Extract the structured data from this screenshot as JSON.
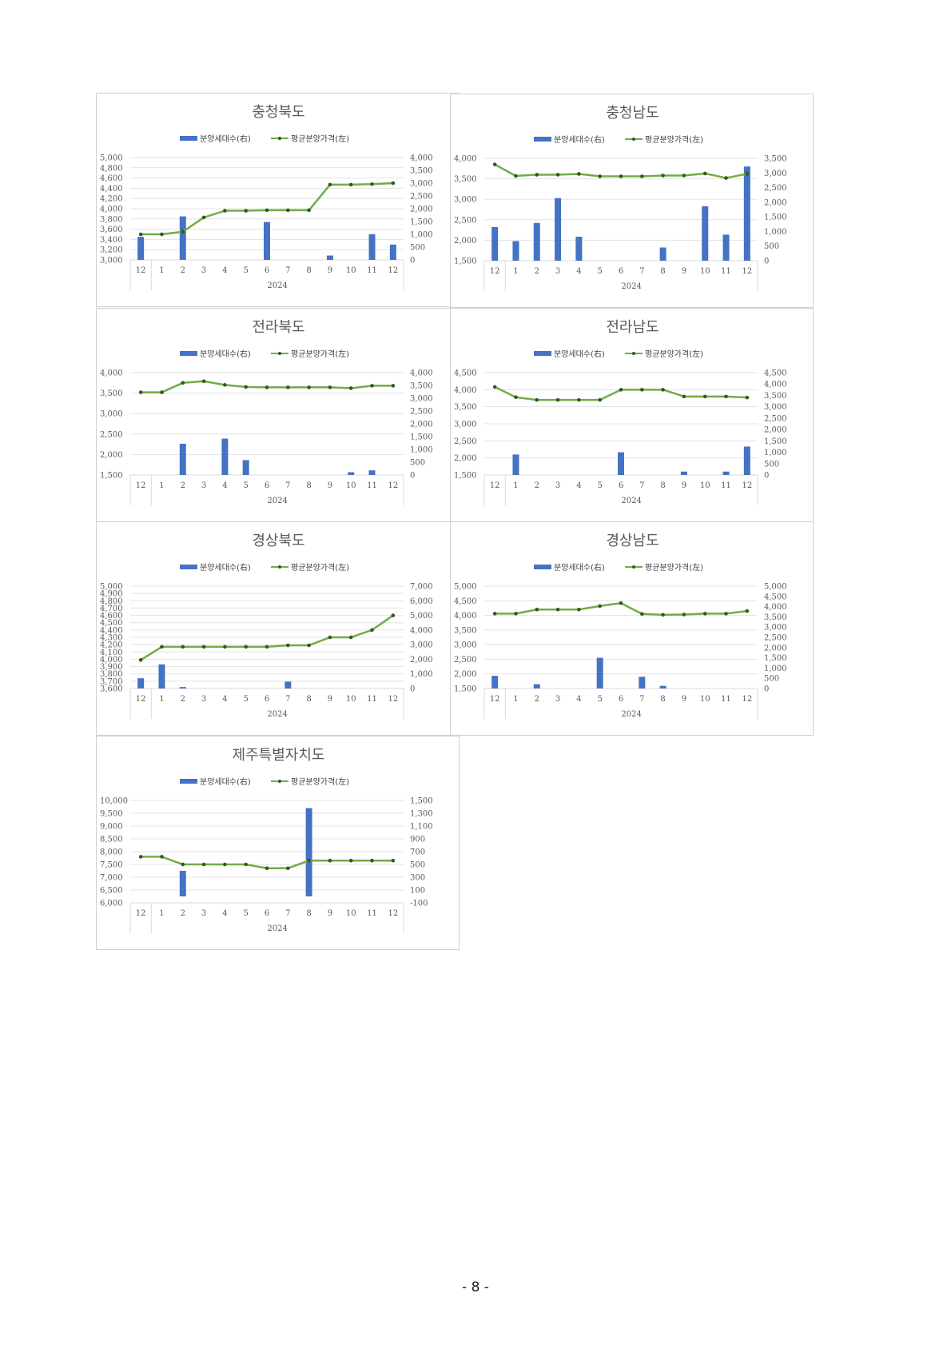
{
  "legend": {
    "bar_label": "분양세대수(右)",
    "line_label": "평균분양가격(左)"
  },
  "colors": {
    "bar": "#4472C4",
    "line": "#70AD47",
    "marker": "#375623",
    "grid": "#e3e3e3"
  },
  "page_number": "- 8 -",
  "chart_data": [
    {
      "type": "bar+line",
      "title": "충청북도",
      "categories": [
        "12",
        "1",
        "2",
        "3",
        "4",
        "5",
        "6",
        "7",
        "8",
        "9",
        "10",
        "11",
        "12"
      ],
      "year_label": "2024",
      "left_axis": {
        "ylim": [
          3000,
          5000
        ],
        "ticks": [
          "3,000",
          "3,200",
          "3,400",
          "3,600",
          "3,800",
          "4,000",
          "4,200",
          "4,400",
          "4,600",
          "4,800",
          "5,000"
        ]
      },
      "right_axis": {
        "ylim": [
          0,
          4000
        ],
        "ticks": [
          "0",
          "500",
          "1,000",
          "1,500",
          "2,000",
          "2,500",
          "3,000",
          "3,500",
          "4,000"
        ]
      },
      "bars": [
        900,
        0,
        1700,
        0,
        0,
        0,
        1480,
        0,
        0,
        170,
        0,
        1000,
        600
      ],
      "line": [
        3500,
        3500,
        3550,
        3830,
        3960,
        3960,
        3970,
        3970,
        3970,
        4470,
        4470,
        4480,
        4500
      ]
    },
    {
      "type": "bar+line",
      "title": "충청남도",
      "categories": [
        "12",
        "1",
        "2",
        "3",
        "4",
        "5",
        "6",
        "7",
        "8",
        "9",
        "10",
        "11",
        "12"
      ],
      "year_label": "2024",
      "left_axis": {
        "ylim": [
          1500,
          4000
        ],
        "ticks": [
          "1,500",
          "2,000",
          "2,500",
          "3,000",
          "3,500",
          "4,000"
        ]
      },
      "right_axis": {
        "ylim": [
          0,
          3500
        ],
        "ticks": [
          "0",
          "500",
          "1,000",
          "1,500",
          "2,000",
          "2,500",
          "3,000",
          "3,500"
        ]
      },
      "bars": [
        1150,
        670,
        1290,
        2140,
        820,
        0,
        0,
        0,
        450,
        0,
        1860,
        890,
        3220
      ],
      "line": [
        3850,
        3570,
        3600,
        3600,
        3620,
        3560,
        3560,
        3560,
        3580,
        3580,
        3630,
        3520,
        3620
      ]
    },
    {
      "type": "bar+line",
      "title": "전라북도",
      "categories": [
        "12",
        "1",
        "2",
        "3",
        "4",
        "5",
        "6",
        "7",
        "8",
        "9",
        "10",
        "11",
        "12"
      ],
      "year_label": "2024",
      "left_axis": {
        "ylim": [
          1500,
          4000
        ],
        "ticks": [
          "1,500",
          "2,000",
          "2,500",
          "3,000",
          "3,500",
          "4,000"
        ]
      },
      "right_axis": {
        "ylim": [
          0,
          4000
        ],
        "ticks": [
          "0",
          "500",
          "1,000",
          "1,500",
          "2,000",
          "2,500",
          "3,000",
          "3,500",
          "4,000"
        ]
      },
      "bars": [
        0,
        0,
        1220,
        0,
        1420,
        580,
        0,
        0,
        0,
        0,
        110,
        180,
        0
      ],
      "line": [
        3520,
        3520,
        3750,
        3790,
        3700,
        3650,
        3640,
        3640,
        3640,
        3640,
        3620,
        3680,
        3680
      ]
    },
    {
      "type": "bar+line",
      "title": "전라남도",
      "categories": [
        "12",
        "1",
        "2",
        "3",
        "4",
        "5",
        "6",
        "7",
        "8",
        "9",
        "10",
        "11",
        "12"
      ],
      "year_label": "2024",
      "left_axis": {
        "ylim": [
          1500,
          4500
        ],
        "ticks": [
          "1,500",
          "2,000",
          "2,500",
          "3,000",
          "3,500",
          "4,000",
          "4,500"
        ]
      },
      "right_axis": {
        "ylim": [
          0,
          4500
        ],
        "ticks": [
          "0",
          "500",
          "1,000",
          "1,500",
          "2,000",
          "2,500",
          "3,000",
          "3,500",
          "4,000",
          "4,500"
        ]
      },
      "bars": [
        0,
        900,
        0,
        0,
        0,
        0,
        1000,
        0,
        0,
        150,
        0,
        150,
        1250
      ],
      "line": [
        4080,
        3780,
        3700,
        3700,
        3700,
        3700,
        4000,
        4000,
        4000,
        3800,
        3800,
        3800,
        3770
      ]
    },
    {
      "type": "bar+line",
      "title": "경상북도",
      "categories": [
        "12",
        "1",
        "2",
        "3",
        "4",
        "5",
        "6",
        "7",
        "8",
        "9",
        "10",
        "11",
        "12"
      ],
      "year_label": "2024",
      "left_axis": {
        "ylim": [
          3600,
          5000
        ],
        "ticks": [
          "3,600",
          "3,700",
          "3,800",
          "3,900",
          "4,000",
          "4,100",
          "4,200",
          "4,300",
          "4,400",
          "4,500",
          "4,600",
          "4,700",
          "4,800",
          "4,900",
          "5,000"
        ]
      },
      "right_axis": {
        "ylim": [
          0,
          7000
        ],
        "ticks": [
          "0",
          "1,000",
          "2,000",
          "3,000",
          "4,000",
          "5,000",
          "6,000",
          "7,000"
        ]
      },
      "bars": [
        700,
        1650,
        100,
        0,
        0,
        0,
        0,
        470,
        0,
        0,
        0,
        0,
        0
      ],
      "line": [
        3990,
        4170,
        4170,
        4170,
        4170,
        4170,
        4170,
        4190,
        4190,
        4300,
        4300,
        4400,
        4600
      ]
    },
    {
      "type": "bar+line",
      "title": "경상남도",
      "categories": [
        "12",
        "1",
        "2",
        "3",
        "4",
        "5",
        "6",
        "7",
        "8",
        "9",
        "10",
        "11",
        "12"
      ],
      "year_label": "2024",
      "left_axis": {
        "ylim": [
          1500,
          5000
        ],
        "ticks": [
          "1,500",
          "2,000",
          "2,500",
          "3,000",
          "3,500",
          "4,000",
          "4,500",
          "5,000"
        ]
      },
      "right_axis": {
        "ylim": [
          0,
          5000
        ],
        "ticks": [
          "0",
          "500",
          "1,000",
          "1,500",
          "2,000",
          "2,500",
          "3,000",
          "3,500",
          "4,000",
          "4,500",
          "5,000"
        ]
      },
      "bars": [
        620,
        0,
        210,
        0,
        0,
        1500,
        0,
        570,
        130,
        0,
        0,
        0,
        0
      ],
      "line": [
        4060,
        4060,
        4200,
        4200,
        4200,
        4320,
        4420,
        4050,
        4020,
        4030,
        4060,
        4060,
        4150
      ]
    },
    {
      "type": "bar+line",
      "title": "제주특별자치도",
      "categories": [
        "12",
        "1",
        "2",
        "3",
        "4",
        "5",
        "6",
        "7",
        "8",
        "9",
        "10",
        "11",
        "12"
      ],
      "year_label": "2024",
      "left_axis": {
        "ylim": [
          6000,
          10000
        ],
        "ticks": [
          "6,000",
          "6,500",
          "7,000",
          "7,500",
          "8,000",
          "8,500",
          "9,000",
          "9,500",
          "10,000"
        ]
      },
      "right_axis": {
        "ylim": [
          -100,
          1500
        ],
        "ticks": [
          "-100",
          "100",
          "300",
          "500",
          "700",
          "900",
          "1,100",
          "1,300",
          "1,500"
        ]
      },
      "bars": [
        0,
        0,
        400,
        0,
        0,
        0,
        0,
        0,
        1380,
        0,
        0,
        0,
        0
      ],
      "bar_base": 0,
      "line": [
        7800,
        7800,
        7500,
        7500,
        7500,
        7500,
        7350,
        7350,
        7650,
        7650,
        7650,
        7650,
        7650
      ]
    }
  ]
}
